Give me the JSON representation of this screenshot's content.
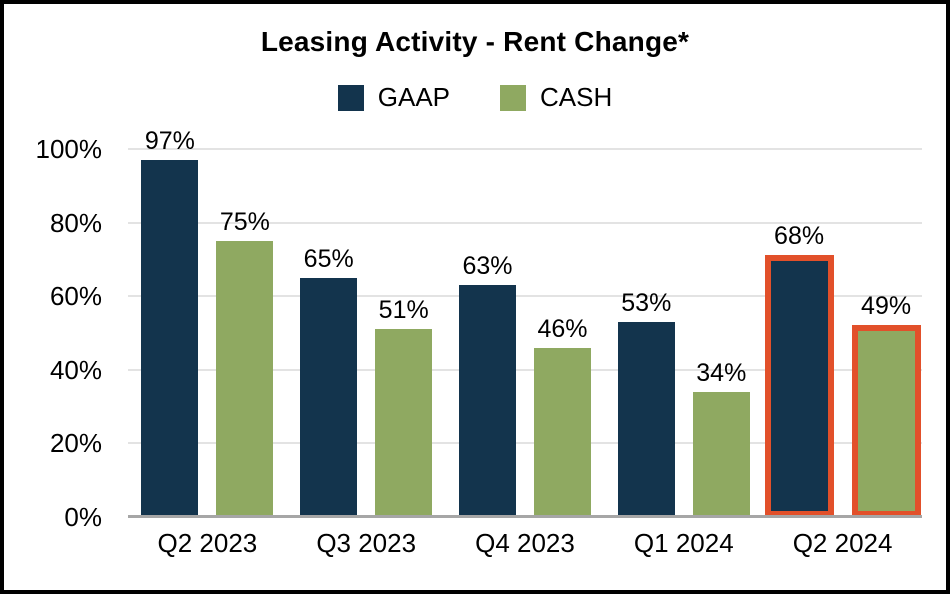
{
  "chart_data": {
    "type": "bar",
    "title": "Leasing Activity - Rent Change*",
    "categories": [
      "Q2 2023",
      "Q3 2023",
      "Q4 2023",
      "Q1 2024",
      "Q2 2024"
    ],
    "series": [
      {
        "name": "GAAP",
        "color": "#13344D",
        "values": [
          97,
          65,
          63,
          53,
          68
        ]
      },
      {
        "name": "CASH",
        "color": "#8FA961",
        "values": [
          75,
          51,
          46,
          34,
          49
        ]
      }
    ],
    "data_labels": [
      "97%",
      "75%",
      "65%",
      "51%",
      "63%",
      "46%",
      "53%",
      "34%",
      "68%",
      "49%"
    ],
    "ylabel": "",
    "xlabel": "",
    "ylim": [
      0,
      100
    ],
    "yticks": [
      "0%",
      "20%",
      "40%",
      "60%",
      "80%",
      "100%"
    ],
    "grid": "horizontal",
    "gridline_color": "#E3E3E3",
    "axis_line_color": "#A6A6A6",
    "legend_position": "top-center",
    "highlighted_category": "Q2 2024",
    "highlight_color": "#E2502A",
    "frame_border_color": "#000000",
    "background_color": "#FFFFFF"
  }
}
